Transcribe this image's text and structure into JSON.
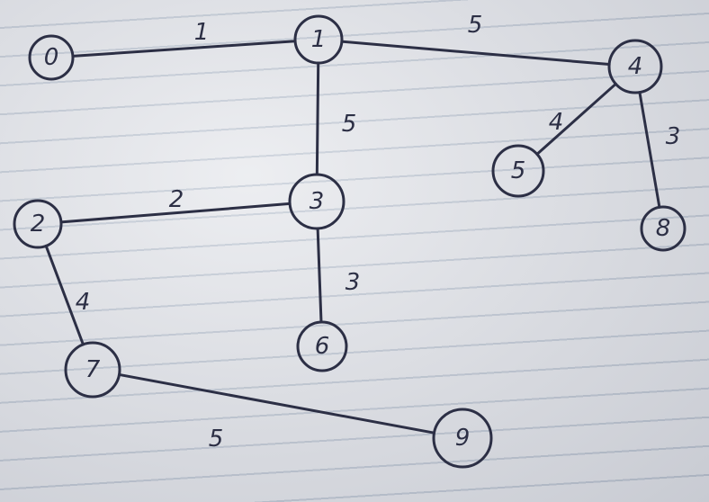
{
  "graph": {
    "nodes": [
      {
        "id": "0",
        "label": "0"
      },
      {
        "id": "1",
        "label": "1"
      },
      {
        "id": "2",
        "label": "2"
      },
      {
        "id": "3",
        "label": "3"
      },
      {
        "id": "4",
        "label": "4"
      },
      {
        "id": "5",
        "label": "5"
      },
      {
        "id": "6",
        "label": "6"
      },
      {
        "id": "7",
        "label": "7"
      },
      {
        "id": "8",
        "label": "8"
      },
      {
        "id": "9",
        "label": "9"
      }
    ],
    "edges": [
      {
        "from": "0",
        "to": "1",
        "weight": "1"
      },
      {
        "from": "1",
        "to": "4",
        "weight": "5"
      },
      {
        "from": "1",
        "to": "3",
        "weight": "5"
      },
      {
        "from": "4",
        "to": "5",
        "weight": "4"
      },
      {
        "from": "4",
        "to": "8",
        "weight": "3"
      },
      {
        "from": "2",
        "to": "3",
        "weight": "2"
      },
      {
        "from": "3",
        "to": "6",
        "weight": "3"
      },
      {
        "from": "2",
        "to": "7",
        "weight": "4"
      },
      {
        "from": "7",
        "to": "9",
        "weight": "5"
      }
    ]
  },
  "colors": {
    "ink": "#2c2f45",
    "paper": "#e3e5ea",
    "rule_line": "#b9c2cf"
  }
}
